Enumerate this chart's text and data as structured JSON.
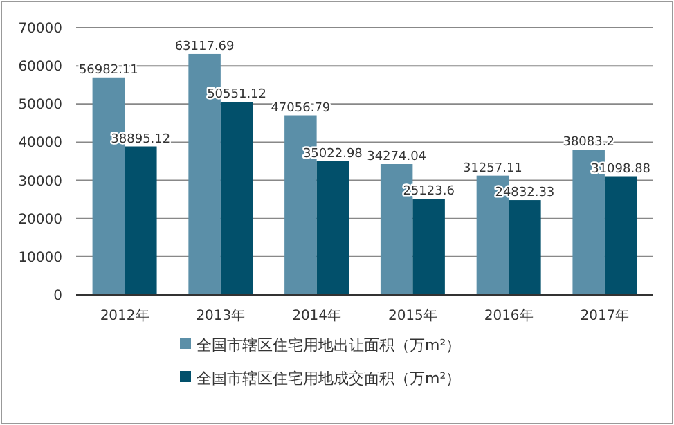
{
  "chart_data": {
    "type": "bar",
    "categories": [
      "2012年",
      "2013年",
      "2014年",
      "2015年",
      "2016年",
      "2017年"
    ],
    "series": [
      {
        "name": "全国市辖区住宅用地出让面积（万m²）",
        "color": "#5b8fa8",
        "values": [
          56982.11,
          63117.69,
          47056.79,
          34274.04,
          31257.11,
          38083.2
        ]
      },
      {
        "name": "全国市辖区住宅用地成交面积（万m²）",
        "color": "#02506b",
        "values": [
          38895.12,
          50551.12,
          35022.98,
          25123.6,
          24832.33,
          31098.88
        ]
      }
    ],
    "ylim": [
      0,
      70000
    ],
    "yticks": [
      0,
      10000,
      20000,
      30000,
      40000,
      50000,
      60000,
      70000
    ],
    "grid": "y",
    "legend": "bottom",
    "data_labels": true
  }
}
